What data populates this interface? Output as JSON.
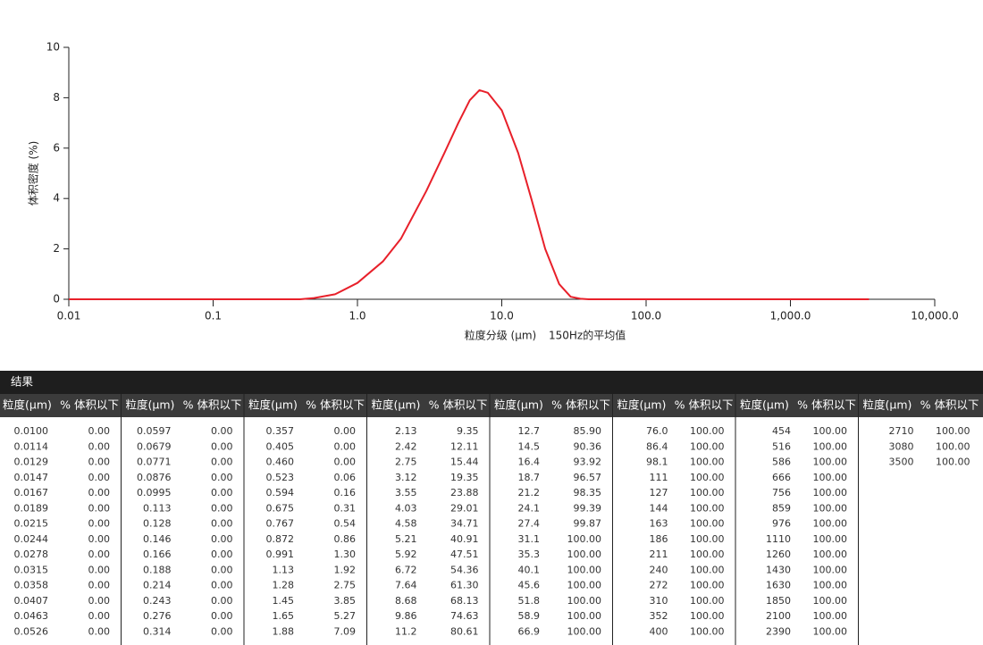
{
  "chart_data": {
    "type": "line",
    "xlabel": "粒度分级 (μm)",
    "ylabel": "体积密度 (%)",
    "xscale": "log",
    "xlim": [
      0.01,
      10000
    ],
    "xticks": [
      0.01,
      0.1,
      {
        "value": 1,
        "label": "1.0"
      },
      {
        "value": 10,
        "label": "10.0"
      },
      {
        "value": 100,
        "label": "100.0"
      },
      {
        "value": 1000,
        "label": "1,000.0"
      },
      {
        "value": 10000,
        "label": "10,000.0"
      }
    ],
    "ylim": [
      0,
      10
    ],
    "yticks": [
      0,
      2,
      4,
      6,
      8,
      10
    ],
    "x": [
      0.01,
      0.1,
      0.4,
      0.5,
      0.7,
      1.0,
      1.5,
      2.0,
      3.0,
      4.0,
      5.0,
      6.0,
      7.0,
      8.0,
      10,
      13,
      16,
      20,
      25,
      30,
      35,
      40,
      100,
      1000,
      3500
    ],
    "series": [
      {
        "name": "150Hz的平均值",
        "color": "#e8202a",
        "values": [
          0,
          0,
          0,
          0.05,
          0.2,
          0.65,
          1.5,
          2.4,
          4.3,
          5.8,
          7.0,
          7.9,
          8.3,
          8.2,
          7.5,
          5.8,
          4.0,
          2.0,
          0.6,
          0.1,
          0.02,
          0,
          0,
          0,
          0
        ]
      }
    ]
  },
  "table": {
    "title": "结果",
    "header": [
      "粒度(μm)",
      "% 体积以下"
    ],
    "groups": [
      [
        [
          "0.0100",
          "0.00"
        ],
        [
          "0.0114",
          "0.00"
        ],
        [
          "0.0129",
          "0.00"
        ],
        [
          "0.0147",
          "0.00"
        ],
        [
          "0.0167",
          "0.00"
        ],
        [
          "0.0189",
          "0.00"
        ],
        [
          "0.0215",
          "0.00"
        ],
        [
          "0.0244",
          "0.00"
        ],
        [
          "0.0278",
          "0.00"
        ],
        [
          "0.0315",
          "0.00"
        ],
        [
          "0.0358",
          "0.00"
        ],
        [
          "0.0407",
          "0.00"
        ],
        [
          "0.0463",
          "0.00"
        ],
        [
          "0.0526",
          "0.00"
        ]
      ],
      [
        [
          "0.0597",
          "0.00"
        ],
        [
          "0.0679",
          "0.00"
        ],
        [
          "0.0771",
          "0.00"
        ],
        [
          "0.0876",
          "0.00"
        ],
        [
          "0.0995",
          "0.00"
        ],
        [
          "0.113",
          "0.00"
        ],
        [
          "0.128",
          "0.00"
        ],
        [
          "0.146",
          "0.00"
        ],
        [
          "0.166",
          "0.00"
        ],
        [
          "0.188",
          "0.00"
        ],
        [
          "0.214",
          "0.00"
        ],
        [
          "0.243",
          "0.00"
        ],
        [
          "0.276",
          "0.00"
        ],
        [
          "0.314",
          "0.00"
        ]
      ],
      [
        [
          "0.357",
          "0.00"
        ],
        [
          "0.405",
          "0.00"
        ],
        [
          "0.460",
          "0.00"
        ],
        [
          "0.523",
          "0.06"
        ],
        [
          "0.594",
          "0.16"
        ],
        [
          "0.675",
          "0.31"
        ],
        [
          "0.767",
          "0.54"
        ],
        [
          "0.872",
          "0.86"
        ],
        [
          "0.991",
          "1.30"
        ],
        [
          "1.13",
          "1.92"
        ],
        [
          "1.28",
          "2.75"
        ],
        [
          "1.45",
          "3.85"
        ],
        [
          "1.65",
          "5.27"
        ],
        [
          "1.88",
          "7.09"
        ]
      ],
      [
        [
          "2.13",
          "9.35"
        ],
        [
          "2.42",
          "12.11"
        ],
        [
          "2.75",
          "15.44"
        ],
        [
          "3.12",
          "19.35"
        ],
        [
          "3.55",
          "23.88"
        ],
        [
          "4.03",
          "29.01"
        ],
        [
          "4.58",
          "34.71"
        ],
        [
          "5.21",
          "40.91"
        ],
        [
          "5.92",
          "47.51"
        ],
        [
          "6.72",
          "54.36"
        ],
        [
          "7.64",
          "61.30"
        ],
        [
          "8.68",
          "68.13"
        ],
        [
          "9.86",
          "74.63"
        ],
        [
          "11.2",
          "80.61"
        ]
      ],
      [
        [
          "12.7",
          "85.90"
        ],
        [
          "14.5",
          "90.36"
        ],
        [
          "16.4",
          "93.92"
        ],
        [
          "18.7",
          "96.57"
        ],
        [
          "21.2",
          "98.35"
        ],
        [
          "24.1",
          "99.39"
        ],
        [
          "27.4",
          "99.87"
        ],
        [
          "31.1",
          "100.00"
        ],
        [
          "35.3",
          "100.00"
        ],
        [
          "40.1",
          "100.00"
        ],
        [
          "45.6",
          "100.00"
        ],
        [
          "51.8",
          "100.00"
        ],
        [
          "58.9",
          "100.00"
        ],
        [
          "66.9",
          "100.00"
        ]
      ],
      [
        [
          "76.0",
          "100.00"
        ],
        [
          "86.4",
          "100.00"
        ],
        [
          "98.1",
          "100.00"
        ],
        [
          "111",
          "100.00"
        ],
        [
          "127",
          "100.00"
        ],
        [
          "144",
          "100.00"
        ],
        [
          "163",
          "100.00"
        ],
        [
          "186",
          "100.00"
        ],
        [
          "211",
          "100.00"
        ],
        [
          "240",
          "100.00"
        ],
        [
          "272",
          "100.00"
        ],
        [
          "310",
          "100.00"
        ],
        [
          "352",
          "100.00"
        ],
        [
          "400",
          "100.00"
        ]
      ],
      [
        [
          "454",
          "100.00"
        ],
        [
          "516",
          "100.00"
        ],
        [
          "586",
          "100.00"
        ],
        [
          "666",
          "100.00"
        ],
        [
          "756",
          "100.00"
        ],
        [
          "859",
          "100.00"
        ],
        [
          "976",
          "100.00"
        ],
        [
          "1110",
          "100.00"
        ],
        [
          "1260",
          "100.00"
        ],
        [
          "1430",
          "100.00"
        ],
        [
          "1630",
          "100.00"
        ],
        [
          "1850",
          "100.00"
        ],
        [
          "2100",
          "100.00"
        ],
        [
          "2390",
          "100.00"
        ]
      ],
      [
        [
          "2710",
          "100.00"
        ],
        [
          "3080",
          "100.00"
        ],
        [
          "3500",
          "100.00"
        ]
      ]
    ]
  }
}
